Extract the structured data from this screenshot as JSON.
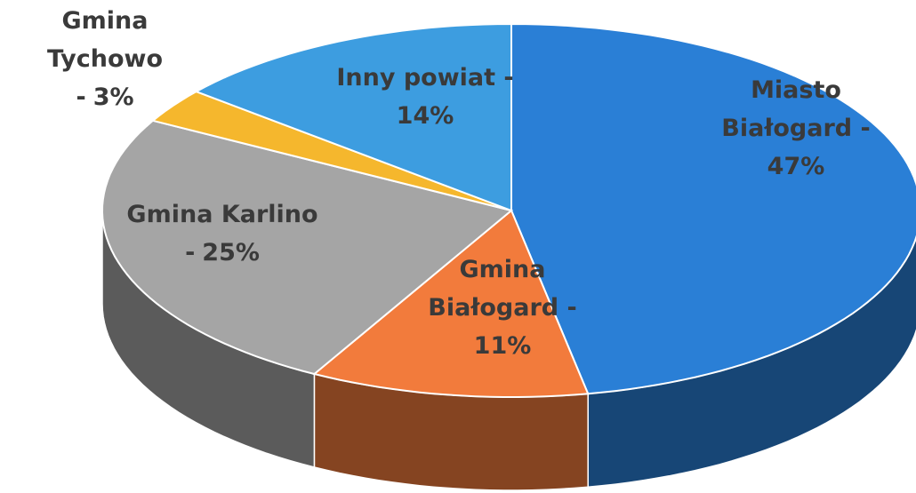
{
  "chart_data": {
    "type": "pie3d",
    "categories": [
      "Miasto Białogard -",
      "Gmina Białogard -",
      "Gmina Karlino -",
      "Gmina Tychowo -",
      "Inny powiat -"
    ],
    "values": [
      47,
      11,
      25,
      3,
      14
    ],
    "value_labels": [
      "47%",
      "11%",
      "25%",
      "3%",
      "14%"
    ],
    "colors": [
      "#2a7fd6",
      "#f27b3c",
      "#a5a5a5",
      "#f5b72d",
      "#3d9de0"
    ]
  }
}
